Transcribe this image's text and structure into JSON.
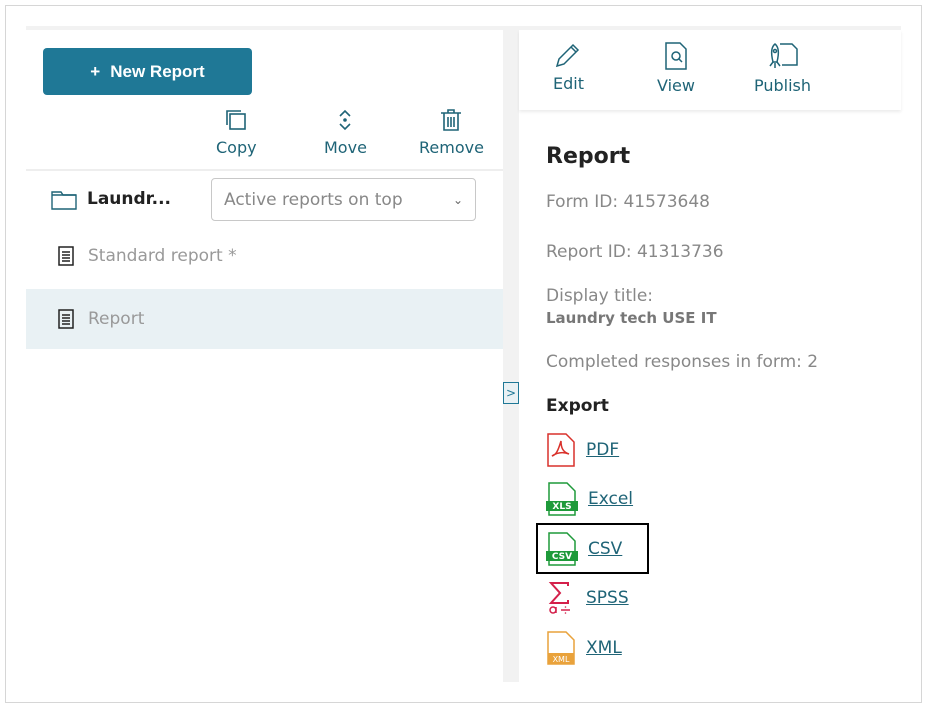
{
  "left": {
    "new_report": "New Report",
    "tools": [
      "Copy",
      "Move",
      "Remove"
    ],
    "folder": "Laundr...",
    "sort": "Active reports on top",
    "reports": [
      {
        "label": "Standard report *",
        "selected": false
      },
      {
        "label": "Report",
        "selected": true
      }
    ]
  },
  "right": {
    "tools": [
      "Edit",
      "View",
      "Publish"
    ],
    "title": "Report",
    "form_id": "Form ID: 41573648",
    "report_id": "Report ID: 41313736",
    "display_title_label": "Display title:",
    "display_title": "Laundry tech USE IT",
    "completed": "Completed responses in form: 2",
    "export_heading": "Export",
    "exports": [
      {
        "label": "PDF",
        "icon": "pdf-icon",
        "color": "#d9312b"
      },
      {
        "label": "Excel",
        "icon": "xls-icon",
        "color": "#1e9a3a"
      },
      {
        "label": "CSV",
        "icon": "csv-icon",
        "color": "#1e9a3a"
      },
      {
        "label": "SPSS",
        "icon": "spss-icon",
        "color": "#d4204a"
      },
      {
        "label": "XML",
        "icon": "xml-icon",
        "color": "#e9a23b"
      }
    ]
  },
  "colors": {
    "accent": "#1f7896",
    "link": "#1f6477"
  }
}
